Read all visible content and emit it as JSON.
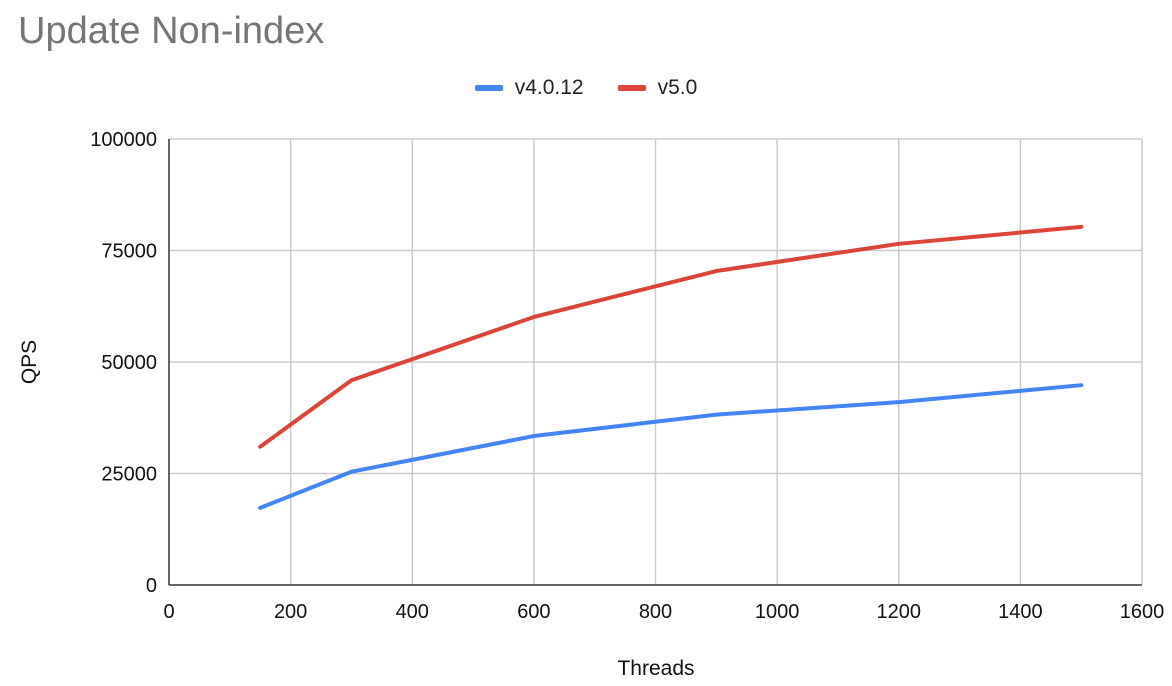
{
  "chart_data": {
    "type": "line",
    "title": "Update Non-index",
    "xlabel": "Threads",
    "ylabel": "QPS",
    "xlim": [
      0,
      1600
    ],
    "ylim": [
      0,
      100000
    ],
    "x_ticks": [
      "0",
      "200",
      "400",
      "600",
      "800",
      "1000",
      "1200",
      "1400",
      "1600"
    ],
    "y_ticks": [
      "0",
      "25000",
      "50000",
      "75000",
      "100000"
    ],
    "grid": true,
    "legend_position": "top-center",
    "x": [
      150,
      300,
      600,
      900,
      1200,
      1500
    ],
    "series": [
      {
        "name": "v4.0.12",
        "color": "#4285f4",
        "values": [
          17300,
          25400,
          33400,
          38200,
          41000,
          44800
        ]
      },
      {
        "name": "v5.0",
        "color": "#db4437",
        "values": [
          31000,
          45900,
          60100,
          70400,
          76500,
          80300
        ]
      }
    ]
  }
}
